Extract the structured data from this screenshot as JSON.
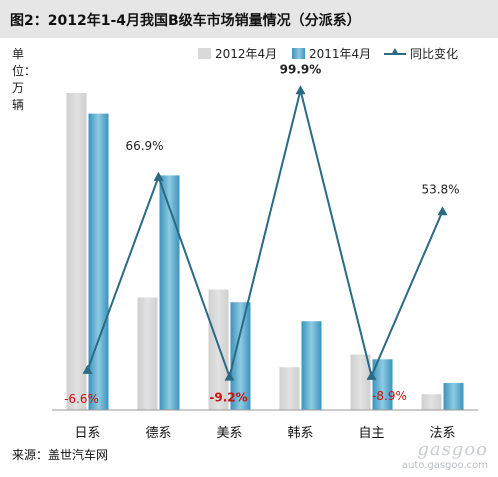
{
  "title": "图2：2012年1-4月我国B级车市场销量情况（分派系）",
  "y_axis_label": "单位：万辆",
  "source": "来源：盖世汽车网",
  "watermark": {
    "logo": "gasgoo",
    "url": "auto.gasgoo.com"
  },
  "colors": {
    "bar2012": "#d9d9d9",
    "bar2011": "#4aa3c8",
    "line": "#2a6a84",
    "negative_label": "#cc1111",
    "positive_label": "#222222"
  },
  "chart_data": {
    "type": "bar",
    "categories": [
      "日系",
      "德系",
      "美系",
      "韩系",
      "自主",
      "法系"
    ],
    "series": [
      {
        "name": "2012年4月",
        "type": "bar",
        "values": [
          10.0,
          3.55,
          3.8,
          1.35,
          1.75,
          0.5
        ]
      },
      {
        "name": "2011年4月",
        "type": "bar",
        "values": [
          9.35,
          7.4,
          3.4,
          2.8,
          1.6,
          0.85
        ]
      },
      {
        "name": "同比变化",
        "type": "line",
        "unit": "%",
        "values": [
          -6.6,
          66.9,
          -9.2,
          99.9,
          -8.9,
          53.8
        ]
      }
    ],
    "data_labels": [
      "-6.6%",
      "66.9%",
      "-9.2%",
      "99.9%",
      "-8.9%",
      "53.8%"
    ],
    "ylim": [
      0,
      10
    ],
    "ylim_secondary": [
      -20,
      100
    ],
    "grid": false,
    "legend_position": "top-right"
  }
}
